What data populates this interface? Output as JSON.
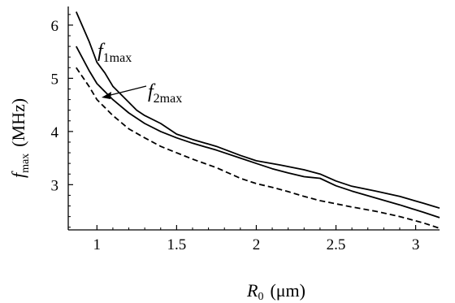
{
  "chart_data": {
    "type": "line",
    "xlabel": {
      "symbol": "R",
      "subscript": "0",
      "unit": "(μm)"
    },
    "ylabel": {
      "symbol": "f",
      "subscript": "max",
      "unit": "(MHz)"
    },
    "xlim": [
      0.82,
      3.15
    ],
    "ylim": [
      2.15,
      6.35
    ],
    "xticks": [
      1,
      1.5,
      2,
      2.5,
      3
    ],
    "xtick_labels": [
      "1",
      "1.5",
      "2",
      "2.5",
      "3"
    ],
    "yticks": [
      3,
      4,
      5,
      6
    ],
    "ytick_labels": [
      "3",
      "4",
      "5",
      "6"
    ],
    "grid": false,
    "series": [
      {
        "name": "f1max",
        "style": "solid",
        "color": "#000000",
        "x": [
          0.87,
          0.95,
          1.0,
          1.05,
          1.1,
          1.2,
          1.25,
          1.3,
          1.4,
          1.5,
          1.6,
          1.75,
          1.9,
          2.0,
          2.15,
          2.3,
          2.4,
          2.5,
          2.6,
          2.75,
          2.9,
          3.05,
          3.15
        ],
        "y": [
          6.25,
          5.7,
          5.3,
          5.1,
          4.85,
          4.55,
          4.4,
          4.3,
          4.15,
          3.95,
          3.85,
          3.72,
          3.55,
          3.45,
          3.37,
          3.28,
          3.2,
          3.07,
          2.97,
          2.88,
          2.78,
          2.65,
          2.56
        ]
      },
      {
        "name": "f2max",
        "style": "solid",
        "color": "#000000",
        "x": [
          0.87,
          0.95,
          1.0,
          1.05,
          1.1,
          1.2,
          1.3,
          1.4,
          1.5,
          1.6,
          1.75,
          1.9,
          2.0,
          2.1,
          2.2,
          2.3,
          2.4,
          2.5,
          2.6,
          2.75,
          2.9,
          3.05,
          3.15
        ],
        "y": [
          5.6,
          5.15,
          4.9,
          4.75,
          4.6,
          4.35,
          4.15,
          4.0,
          3.88,
          3.78,
          3.65,
          3.5,
          3.4,
          3.3,
          3.22,
          3.15,
          3.12,
          2.98,
          2.88,
          2.75,
          2.62,
          2.48,
          2.38
        ]
      },
      {
        "name": "",
        "style": "dashed",
        "color": "#000000",
        "x": [
          0.87,
          0.95,
          1.0,
          1.1,
          1.2,
          1.3,
          1.4,
          1.5,
          1.6,
          1.75,
          1.9,
          2.0,
          2.1,
          2.2,
          2.3,
          2.4,
          2.5,
          2.6,
          2.75,
          2.9,
          3.05,
          3.15
        ],
        "y": [
          5.2,
          4.85,
          4.6,
          4.3,
          4.05,
          3.88,
          3.72,
          3.6,
          3.48,
          3.32,
          3.12,
          3.02,
          2.95,
          2.87,
          2.78,
          2.7,
          2.64,
          2.58,
          2.5,
          2.4,
          2.28,
          2.18
        ]
      }
    ],
    "annotations": [
      {
        "symbol": "f",
        "subscript": "1max",
        "series": "f1max"
      },
      {
        "symbol": "f",
        "subscript": "2max",
        "series": "f2max"
      }
    ]
  }
}
